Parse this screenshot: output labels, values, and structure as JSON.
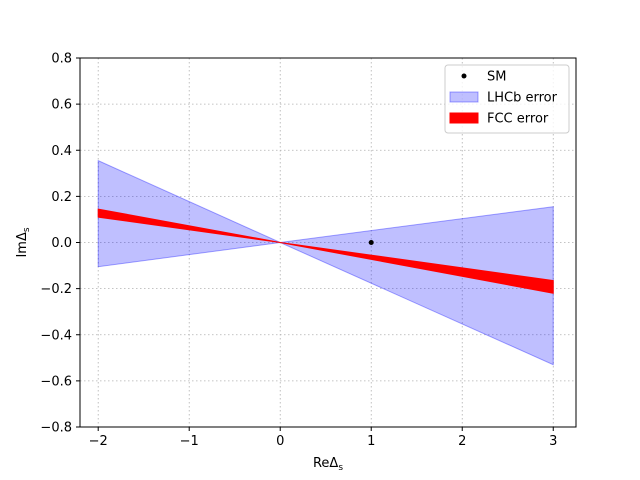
{
  "chart_data": {
    "type": "area",
    "title": "",
    "xlabel": "ReΔ",
    "xlabel_sub": "s",
    "ylabel": "ImΔ",
    "ylabel_sub": "s",
    "xlim": [
      -2.2,
      3.25
    ],
    "ylim": [
      -0.8,
      0.8
    ],
    "xticks": [
      -2,
      -1,
      0,
      1,
      2,
      3
    ],
    "xtick_labels": [
      "−2",
      "−1",
      "0",
      "1",
      "2",
      "3"
    ],
    "yticks": [
      -0.8,
      -0.6,
      -0.4,
      -0.2,
      0.0,
      0.2,
      0.4,
      0.6,
      0.8
    ],
    "ytick_labels": [
      "−0.8",
      "−0.6",
      "−0.4",
      "−0.2",
      "0.0",
      "0.2",
      "0.4",
      "0.6",
      "0.8"
    ],
    "grid": true,
    "legend_position": "top-right",
    "series": [
      {
        "name": "SM",
        "kind": "point",
        "color": "#000000",
        "x": [
          1.0
        ],
        "y": [
          0.0
        ]
      },
      {
        "name": "LHCb error",
        "kind": "band",
        "color": "#0000ff",
        "alpha": 0.25,
        "x": [
          -2,
          0,
          3
        ],
        "y_upper": [
          0.355,
          0.0,
          0.155
        ],
        "y_lower": [
          -0.105,
          0.0,
          -0.53
        ]
      },
      {
        "name": "FCC error",
        "kind": "band",
        "color": "#ff0000",
        "alpha": 1.0,
        "x": [
          -2,
          0,
          3
        ],
        "y_upper": [
          0.145,
          0.0,
          -0.165
        ],
        "y_lower": [
          0.11,
          0.0,
          -0.22
        ]
      }
    ]
  }
}
